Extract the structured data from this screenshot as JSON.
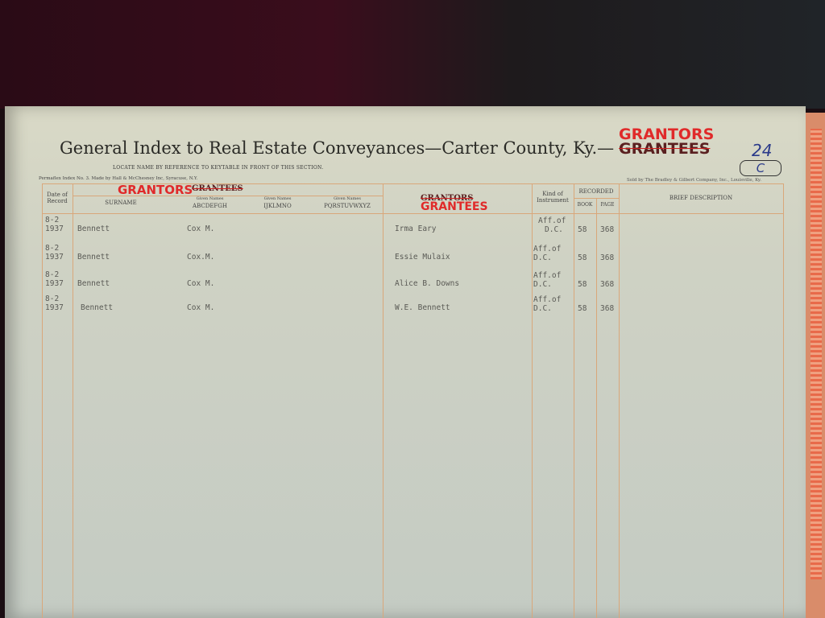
{
  "title": "General Index to Real Estate Conveyances—Carter County, Ky.—",
  "title_handwritten": {
    "corrected": "GRANTORS",
    "struck": "GRANTEES"
  },
  "page_number": "24",
  "page_letter": "C",
  "note": "LOCATE NAME BY REFERENCE TO KEYTABLE IN FRONT OF THIS SECTION.",
  "maker": "Permaflex Index No. 3.  Made by Hall & McChesney Inc, Syracuse, N.Y.",
  "seller": "Sold by The Bradley & Gilbert Company, Inc., Louisville, Ky.",
  "headers": {
    "date": "Date of Record",
    "name_group_corrected": "GRANTORS",
    "name_group_struck": "GRANTEES",
    "surname": "SURNAME",
    "given_label": "Given Names",
    "given_1": "ABCDEFGH",
    "given_2": "IJKLMNO",
    "given_3": "PQRSTUVWXYZ",
    "other_struck": "GRANTORS",
    "other_corrected": "GRANTEES",
    "kind": "Kind of Instrument",
    "recorded": "RECORDED",
    "book": "BOOK",
    "page": "PAGE",
    "brief": "BRIEF DESCRIPTION"
  },
  "rows": [
    {
      "date1": "8-2",
      "date2": "1937",
      "surname": "Bennett",
      "given": "Cox M.",
      "grantee": "Irma Eary",
      "kind1": "Aff.of",
      "kind2": "D.C.",
      "book": "58",
      "page": "368"
    },
    {
      "date1": "8-2",
      "date2": "1937",
      "surname": "Bennett",
      "given": "Cox.M.",
      "grantee": "Essie Mulaix",
      "kind1": "Aff.of",
      "kind2": "D.C.",
      "book": "58",
      "page": "368"
    },
    {
      "date1": "8-2",
      "date2": "1937",
      "surname": "Bennett",
      "given": "Cox M.",
      "grantee": "Alice B. Downs",
      "kind1": "Aff.of",
      "kind2": "D.C.",
      "book": "58",
      "page": "368"
    },
    {
      "date1": "8-2",
      "date2": "1937",
      "surname": "Bennett",
      "given": "Cox M.",
      "grantee": "W.E. Bennett",
      "kind1": "Aff.of",
      "kind2": "D.C.",
      "book": "58",
      "page": "368"
    }
  ]
}
